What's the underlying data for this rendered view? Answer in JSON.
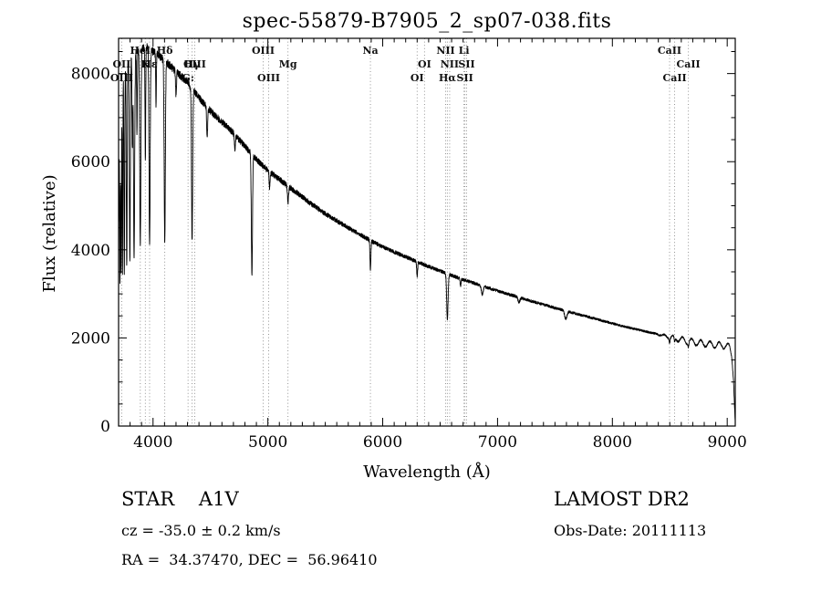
{
  "title": "spec-55879-B7905_2_sp07-038.fits",
  "footer": {
    "class_label": "STAR    A1V",
    "survey": "LAMOST DR2",
    "cz": "cz = -35.0 ± 0.2 km/s",
    "obs_date": "Obs-Date: 20111113",
    "coords": "RA =  34.37470, DEC =  56.96410"
  },
  "chart_data": {
    "type": "line",
    "title": "spec-55879-B7905_2_sp07-038.fits",
    "xlabel": "Wavelength (Å)",
    "ylabel": "Flux (relative)",
    "xlim": [
      3700,
      9070
    ],
    "ylim": [
      0,
      8800
    ],
    "x_ticks": [
      4000,
      5000,
      6000,
      7000,
      8000,
      9000
    ],
    "y_ticks": [
      0,
      2000,
      4000,
      6000,
      8000
    ],
    "minor_x_step": 100,
    "minor_y_step": 500,
    "grid": false,
    "legend": "none",
    "series_name": "flux",
    "continuum_anchors": [
      [
        3700,
        6500
      ],
      [
        3730,
        8200
      ],
      [
        3780,
        8350
      ],
      [
        3850,
        8500
      ],
      [
        3900,
        8550
      ],
      [
        3950,
        8600
      ],
      [
        4000,
        8500
      ],
      [
        4100,
        8300
      ],
      [
        4200,
        8050
      ],
      [
        4300,
        7800
      ],
      [
        4400,
        7450
      ],
      [
        4500,
        7150
      ],
      [
        4600,
        6900
      ],
      [
        4700,
        6650
      ],
      [
        4800,
        6350
      ],
      [
        4900,
        6050
      ],
      [
        5000,
        5800
      ],
      [
        5100,
        5600
      ],
      [
        5200,
        5400
      ],
      [
        5300,
        5200
      ],
      [
        5400,
        5000
      ],
      [
        5500,
        4820
      ],
      [
        5600,
        4660
      ],
      [
        5700,
        4500
      ],
      [
        5800,
        4350
      ],
      [
        5900,
        4200
      ],
      [
        6000,
        4070
      ],
      [
        6100,
        3950
      ],
      [
        6200,
        3840
      ],
      [
        6300,
        3730
      ],
      [
        6400,
        3620
      ],
      [
        6500,
        3520
      ],
      [
        6600,
        3420
      ],
      [
        6700,
        3320
      ],
      [
        6800,
        3240
      ],
      [
        6900,
        3150
      ],
      [
        7000,
        3070
      ],
      [
        7100,
        2990
      ],
      [
        7200,
        2910
      ],
      [
        7300,
        2830
      ],
      [
        7400,
        2760
      ],
      [
        7500,
        2680
      ],
      [
        7600,
        2610
      ],
      [
        7700,
        2540
      ],
      [
        7800,
        2470
      ],
      [
        7900,
        2400
      ],
      [
        8000,
        2330
      ],
      [
        8100,
        2260
      ],
      [
        8200,
        2200
      ],
      [
        8300,
        2140
      ],
      [
        8400,
        2080
      ],
      [
        8500,
        2020
      ],
      [
        8600,
        1960
      ],
      [
        8700,
        1910
      ],
      [
        8800,
        1870
      ],
      [
        8900,
        1840
      ],
      [
        9000,
        1820
      ],
      [
        9020,
        1780
      ],
      [
        9040,
        1600
      ],
      [
        9055,
        1100
      ],
      [
        9065,
        400
      ],
      [
        9070,
        80
      ]
    ],
    "absorption_lines": [
      [
        3700,
        0.3,
        3
      ],
      [
        3712,
        0.55,
        3
      ],
      [
        3722,
        0.55,
        3
      ],
      [
        3734,
        0.58,
        3
      ],
      [
        3750,
        0.58,
        3.5
      ],
      [
        3771,
        0.56,
        4
      ],
      [
        3798,
        0.55,
        4.5
      ],
      [
        3820,
        0.25,
        3
      ],
      [
        3835,
        0.55,
        5
      ],
      [
        3860,
        0.22,
        3
      ],
      [
        3889,
        0.52,
        5
      ],
      [
        3933,
        0.3,
        3
      ],
      [
        3970,
        0.52,
        5
      ],
      [
        4026,
        0.14,
        3
      ],
      [
        4102,
        0.5,
        5
      ],
      [
        4200,
        0.07,
        4
      ],
      [
        4340,
        0.45,
        5
      ],
      [
        4471,
        0.1,
        4
      ],
      [
        4713,
        0.05,
        4
      ],
      [
        4861,
        0.44,
        5
      ],
      [
        5015,
        0.06,
        4
      ],
      [
        5175,
        0.07,
        5
      ],
      [
        5893,
        0.16,
        4
      ],
      [
        6300,
        0.09,
        4
      ],
      [
        6563,
        0.3,
        6
      ],
      [
        6678,
        0.05,
        4
      ],
      [
        6867,
        0.06,
        8
      ],
      [
        7186,
        0.04,
        8
      ],
      [
        7594,
        0.07,
        10
      ],
      [
        8498,
        0.05,
        4
      ],
      [
        8542,
        0.06,
        4
      ],
      [
        8662,
        0.05,
        4
      ]
    ],
    "red_ripple": {
      "start": 8350,
      "amplitude": 70,
      "period": 80,
      "ramp": 250
    },
    "noise_fraction": 0.011,
    "line_markers": [
      {
        "text": "HeI",
        "wl": 3889,
        "row": 1
      },
      {
        "text": "Hδ",
        "wl": 4102,
        "row": 1
      },
      {
        "text": "OIII",
        "wl": 4959,
        "row": 1
      },
      {
        "text": "Na",
        "wl": 5893,
        "row": 1
      },
      {
        "text": "NII",
        "wl": 6548,
        "row": 1
      },
      {
        "text": "Li",
        "wl": 6708,
        "row": 1
      },
      {
        "text": "CaII",
        "wl": 8498,
        "row": 1
      },
      {
        "text": "OII",
        "wl": 3727,
        "row": 2
      },
      {
        "text": "K",
        "wl": 3933,
        "row": 2
      },
      {
        "text": "Hε",
        "wl": 3970,
        "row": 2
      },
      {
        "text": "Hγ",
        "wl": 4340,
        "row": 2
      },
      {
        "text": "OIII",
        "wl": 4363,
        "row": 2
      },
      {
        "text": "Mg",
        "wl": 5175,
        "row": 2
      },
      {
        "text": "OI",
        "wl": 6364,
        "row": 2
      },
      {
        "text": "NII",
        "wl": 6583,
        "row": 2
      },
      {
        "text": "SII",
        "wl": 6731,
        "row": 2
      },
      {
        "text": "CaII",
        "wl": 8662,
        "row": 2
      },
      {
        "text": "OIII",
        "wl": 3727,
        "row": 3
      },
      {
        "text": "G:",
        "wl": 4305,
        "row": 3
      },
      {
        "text": "OIII",
        "wl": 5007,
        "row": 3
      },
      {
        "text": "OI",
        "wl": 6300,
        "row": 3
      },
      {
        "text": "Hα",
        "wl": 6563,
        "row": 3
      },
      {
        "text": "SII",
        "wl": 6716,
        "row": 3
      },
      {
        "text": "CaII",
        "wl": 8542,
        "row": 3
      }
    ],
    "colors": {
      "spectrum": "#000000",
      "marker": "#8a8a8a",
      "frame": "#000000"
    }
  }
}
